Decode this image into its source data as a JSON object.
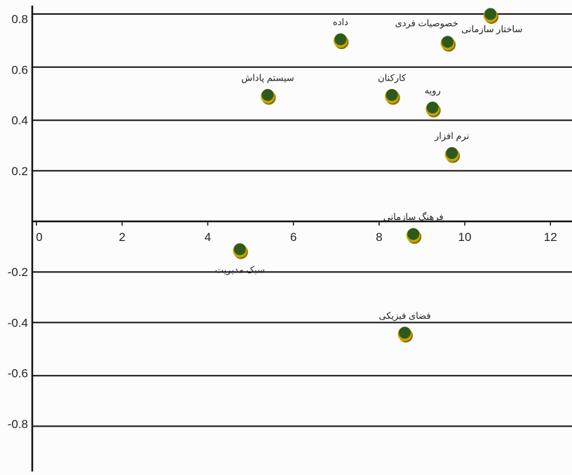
{
  "chart_data": {
    "type": "scatter",
    "title": "",
    "xlabel": "",
    "ylabel": "",
    "xlim": [
      0,
      12.5
    ],
    "ylim": [
      -0.98,
      0.98
    ],
    "grid": true,
    "legend": "none",
    "x_ticks": [
      "0",
      "2",
      "4",
      "6",
      "8",
      "10",
      "12"
    ],
    "x_tick_values": [
      0,
      2,
      4,
      6,
      8,
      10,
      12
    ],
    "y_ticks": [
      "0.8",
      "0.6",
      "0.4",
      "0.2",
      "-0.2",
      "-0.4",
      "-0.6",
      "-0.8"
    ],
    "y_tick_values": [
      0.8,
      0.6,
      0.4,
      0.2,
      -0.2,
      -0.4,
      -0.6,
      -0.8
    ],
    "gridlines_y": [
      0.82,
      0.61,
      0.4,
      0.2,
      -0.2,
      -0.4,
      -0.61,
      -0.81
    ],
    "points": [
      {
        "label": "داده",
        "x": 7.1,
        "y": 0.72,
        "label_pos": "above"
      },
      {
        "label": "خصوصیات فردی",
        "x": 9.6,
        "y": 0.71,
        "label_pos": "above-left"
      },
      {
        "label": "ساختار سازمانی",
        "x": 10.6,
        "y": 0.82,
        "label_pos": "below-right"
      },
      {
        "label": "سیستم پاداش",
        "x": 5.4,
        "y": 0.5,
        "label_pos": "above"
      },
      {
        "label": "کارکنان",
        "x": 8.3,
        "y": 0.5,
        "label_pos": "above"
      },
      {
        "label": "رویه",
        "x": 9.25,
        "y": 0.45,
        "label_pos": "above"
      },
      {
        "label": "نرم افزار",
        "x": 9.7,
        "y": 0.27,
        "label_pos": "above"
      },
      {
        "label": "فرهنگ سازمانی",
        "x": 8.8,
        "y": -0.05,
        "label_pos": "above"
      },
      {
        "label": "سبک مدیریت",
        "x": 4.75,
        "y": -0.11,
        "label_pos": "below"
      },
      {
        "label": "فضای فیزیکی",
        "x": 8.6,
        "y": -0.44,
        "label_pos": "above"
      }
    ],
    "colors": {
      "marker_fill": "#2d5a1b",
      "marker_ring": "#c9a400",
      "marker_shadow": "#8a6d00"
    }
  }
}
